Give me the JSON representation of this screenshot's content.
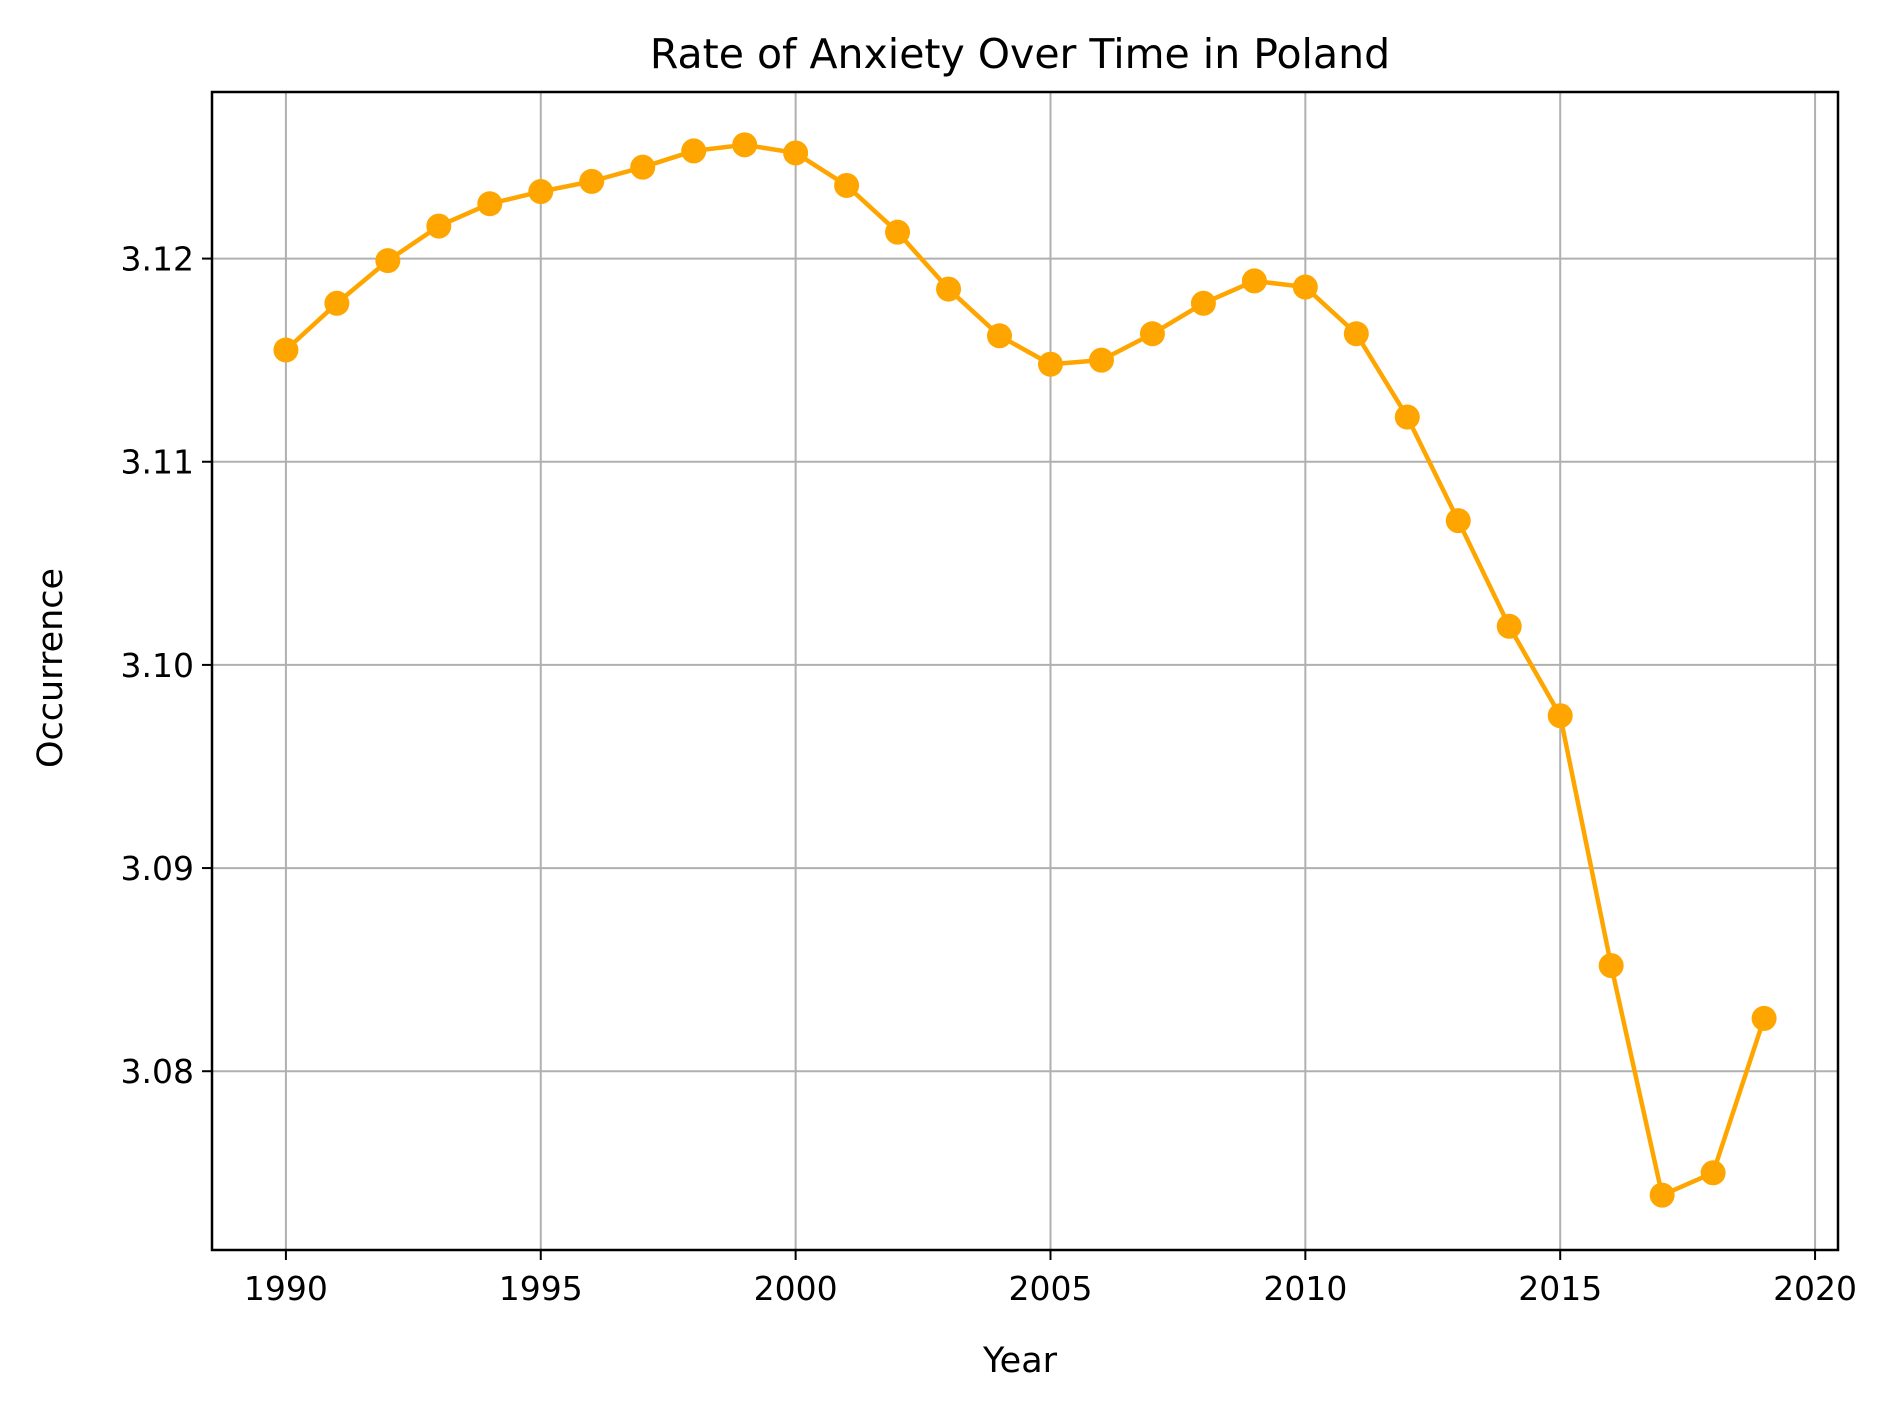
{
  "chart_data": {
    "type": "line",
    "title": "Rate of Anxiety Over Time in Poland",
    "xlabel": "Year",
    "ylabel": "Occurrence",
    "xlim": [
      1988.55,
      2020.45
    ],
    "ylim": [
      3.0712,
      3.1282
    ],
    "xticks": [
      1990,
      1995,
      2000,
      2005,
      2010,
      2015,
      2020
    ],
    "yticks": [
      3.08,
      3.09,
      3.1,
      3.11,
      3.12
    ],
    "ytick_labels": [
      "3.08",
      "3.09",
      "3.10",
      "3.11",
      "3.12"
    ],
    "grid": true,
    "color": "#ffa500",
    "x": [
      1990,
      1991,
      1992,
      1993,
      1994,
      1995,
      1996,
      1997,
      1998,
      1999,
      2000,
      2001,
      2002,
      2003,
      2004,
      2005,
      2006,
      2007,
      2008,
      2009,
      2010,
      2011,
      2012,
      2013,
      2014,
      2015,
      2016,
      2017,
      2018,
      2019
    ],
    "y": [
      3.1155,
      3.1178,
      3.1199,
      3.1216,
      3.1227,
      3.1233,
      3.1238,
      3.1245,
      3.1253,
      3.1256,
      3.1252,
      3.1236,
      3.1213,
      3.1185,
      3.1162,
      3.1148,
      3.115,
      3.1163,
      3.1178,
      3.1189,
      3.1186,
      3.1163,
      3.1122,
      3.1071,
      3.1019,
      3.0975,
      3.0852,
      3.0739,
      3.075,
      3.0826
    ]
  }
}
